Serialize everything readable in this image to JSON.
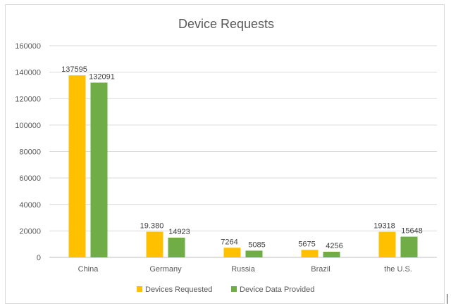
{
  "chart_data": {
    "type": "bar",
    "title": "Device Requests",
    "categories": [
      "China",
      "Germany",
      "Russia",
      "Brazil",
      "the U.S."
    ],
    "series": [
      {
        "name": "Devices Requested",
        "color": "#FFC000",
        "values": [
          137595,
          19380,
          7264,
          5675,
          19318
        ],
        "labels": [
          "137595",
          "19.380",
          "7264",
          "5675",
          "19318"
        ]
      },
      {
        "name": "Device Data Provided",
        "color": "#70AD47",
        "values": [
          132091,
          14923,
          5085,
          4256,
          15648
        ],
        "labels": [
          "132091",
          "14923",
          "5085",
          "4256",
          "15648"
        ]
      }
    ],
    "yticks": [
      "0",
      "20000",
      "40000",
      "60000",
      "80000",
      "100000",
      "120000",
      "140000",
      "160000"
    ],
    "ylim": [
      0,
      160000
    ],
    "grid": true,
    "legend": "bottom"
  }
}
